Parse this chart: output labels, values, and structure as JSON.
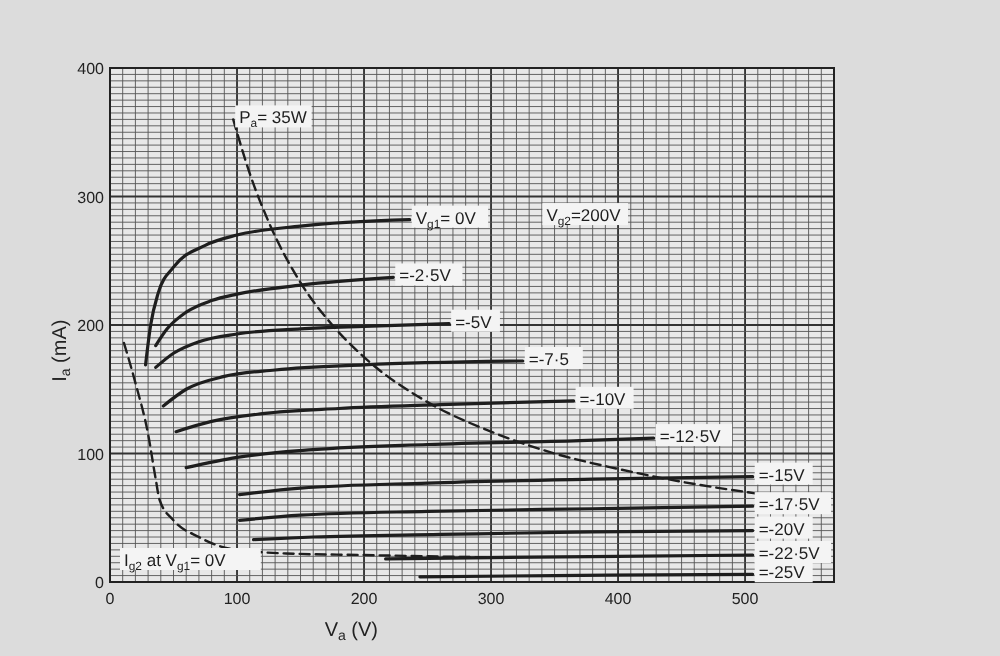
{
  "chart_data": {
    "type": "line",
    "xlabel": "V$_{a}$ (V)",
    "ylabel": "I$_{a}$ (mA)",
    "xlim": [
      0,
      570
    ],
    "ylim": [
      0,
      400
    ],
    "xticks": [
      0,
      100,
      200,
      300,
      400,
      500
    ],
    "yticks": [
      0,
      100,
      200,
      300,
      400
    ],
    "grid": true,
    "annotations": [
      "V$_{g2}$=200V"
    ],
    "series": [
      {
        "name": "V$_{g1}$= 0V",
        "color": "#1e1e1e",
        "x": [
          28,
          32,
          38,
          50,
          75,
          100,
          150,
          236
        ],
        "values": [
          169,
          200,
          225,
          245,
          262,
          270,
          277,
          282
        ]
      },
      {
        "name": "=-2·5V",
        "color": "#1e1e1e",
        "x": [
          36,
          45,
          60,
          80,
          100,
          150,
          223
        ],
        "values": [
          184,
          197,
          210,
          219,
          224,
          231,
          237
        ]
      },
      {
        "name": "=-5V",
        "color": "#1e1e1e",
        "x": [
          36,
          50,
          70,
          100,
          150,
          200,
          267
        ],
        "values": [
          167,
          178,
          187,
          193,
          197,
          199,
          201
        ]
      },
      {
        "name": "=-7·5",
        "color": "#1e1e1e",
        "x": [
          42,
          60,
          90,
          130,
          200,
          325
        ],
        "values": [
          137,
          150,
          160,
          165,
          169,
          172
        ]
      },
      {
        "name": "=-10V",
        "color": "#1e1e1e",
        "x": [
          52,
          80,
          120,
          180,
          260,
          365
        ],
        "values": [
          117,
          125,
          131,
          135,
          138,
          141
        ]
      },
      {
        "name": "=-12·5V",
        "color": "#1e1e1e",
        "x": [
          60,
          100,
          160,
          250,
          370,
          428
        ],
        "values": [
          89,
          97,
          103,
          107,
          110,
          112
        ]
      },
      {
        "name": "=-15V",
        "color": "#1e1e1e",
        "x": [
          102,
          150,
          250,
          380,
          506
        ],
        "values": [
          68,
          73,
          77,
          80,
          82
        ]
      },
      {
        "name": "=-17·5V",
        "color": "#1e1e1e",
        "x": [
          102,
          150,
          250,
          380,
          506
        ],
        "values": [
          48,
          52,
          55,
          57,
          59
        ]
      },
      {
        "name": "=-20V",
        "color": "#1e1e1e",
        "x": [
          113,
          160,
          260,
          380,
          506
        ],
        "values": [
          33,
          35,
          37,
          39,
          40
        ]
      },
      {
        "name": "=-22·5V",
        "color": "#1e1e1e",
        "x": [
          217,
          300,
          400,
          506
        ],
        "values": [
          18,
          19,
          20,
          21
        ]
      },
      {
        "name": "=-25V",
        "color": "#1e1e1e",
        "x": [
          244,
          350,
          506
        ],
        "values": [
          4,
          5,
          6
        ]
      },
      {
        "name": "P$_{a}$= 35W",
        "color": "#1e1e1e",
        "line_style": "dashed",
        "x": [
          97,
          110,
          125,
          150,
          175,
          200,
          250,
          300,
          350,
          400,
          450,
          508
        ],
        "values": [
          360,
          318,
          280,
          233,
          200,
          175,
          140,
          117,
          100,
          88,
          78,
          69
        ]
      },
      {
        "name": "I$_{g2}$ at V$_{g1}$= 0V",
        "color": "#1e1e1e",
        "line_style": "dashed",
        "x": [
          11,
          20,
          30,
          36,
          39,
          50,
          70,
          86,
          110,
          145,
          200,
          250,
          307
        ],
        "values": [
          186,
          155,
          115,
          80,
          64,
          48,
          35,
          28,
          24,
          22,
          21,
          20,
          19
        ]
      }
    ]
  }
}
